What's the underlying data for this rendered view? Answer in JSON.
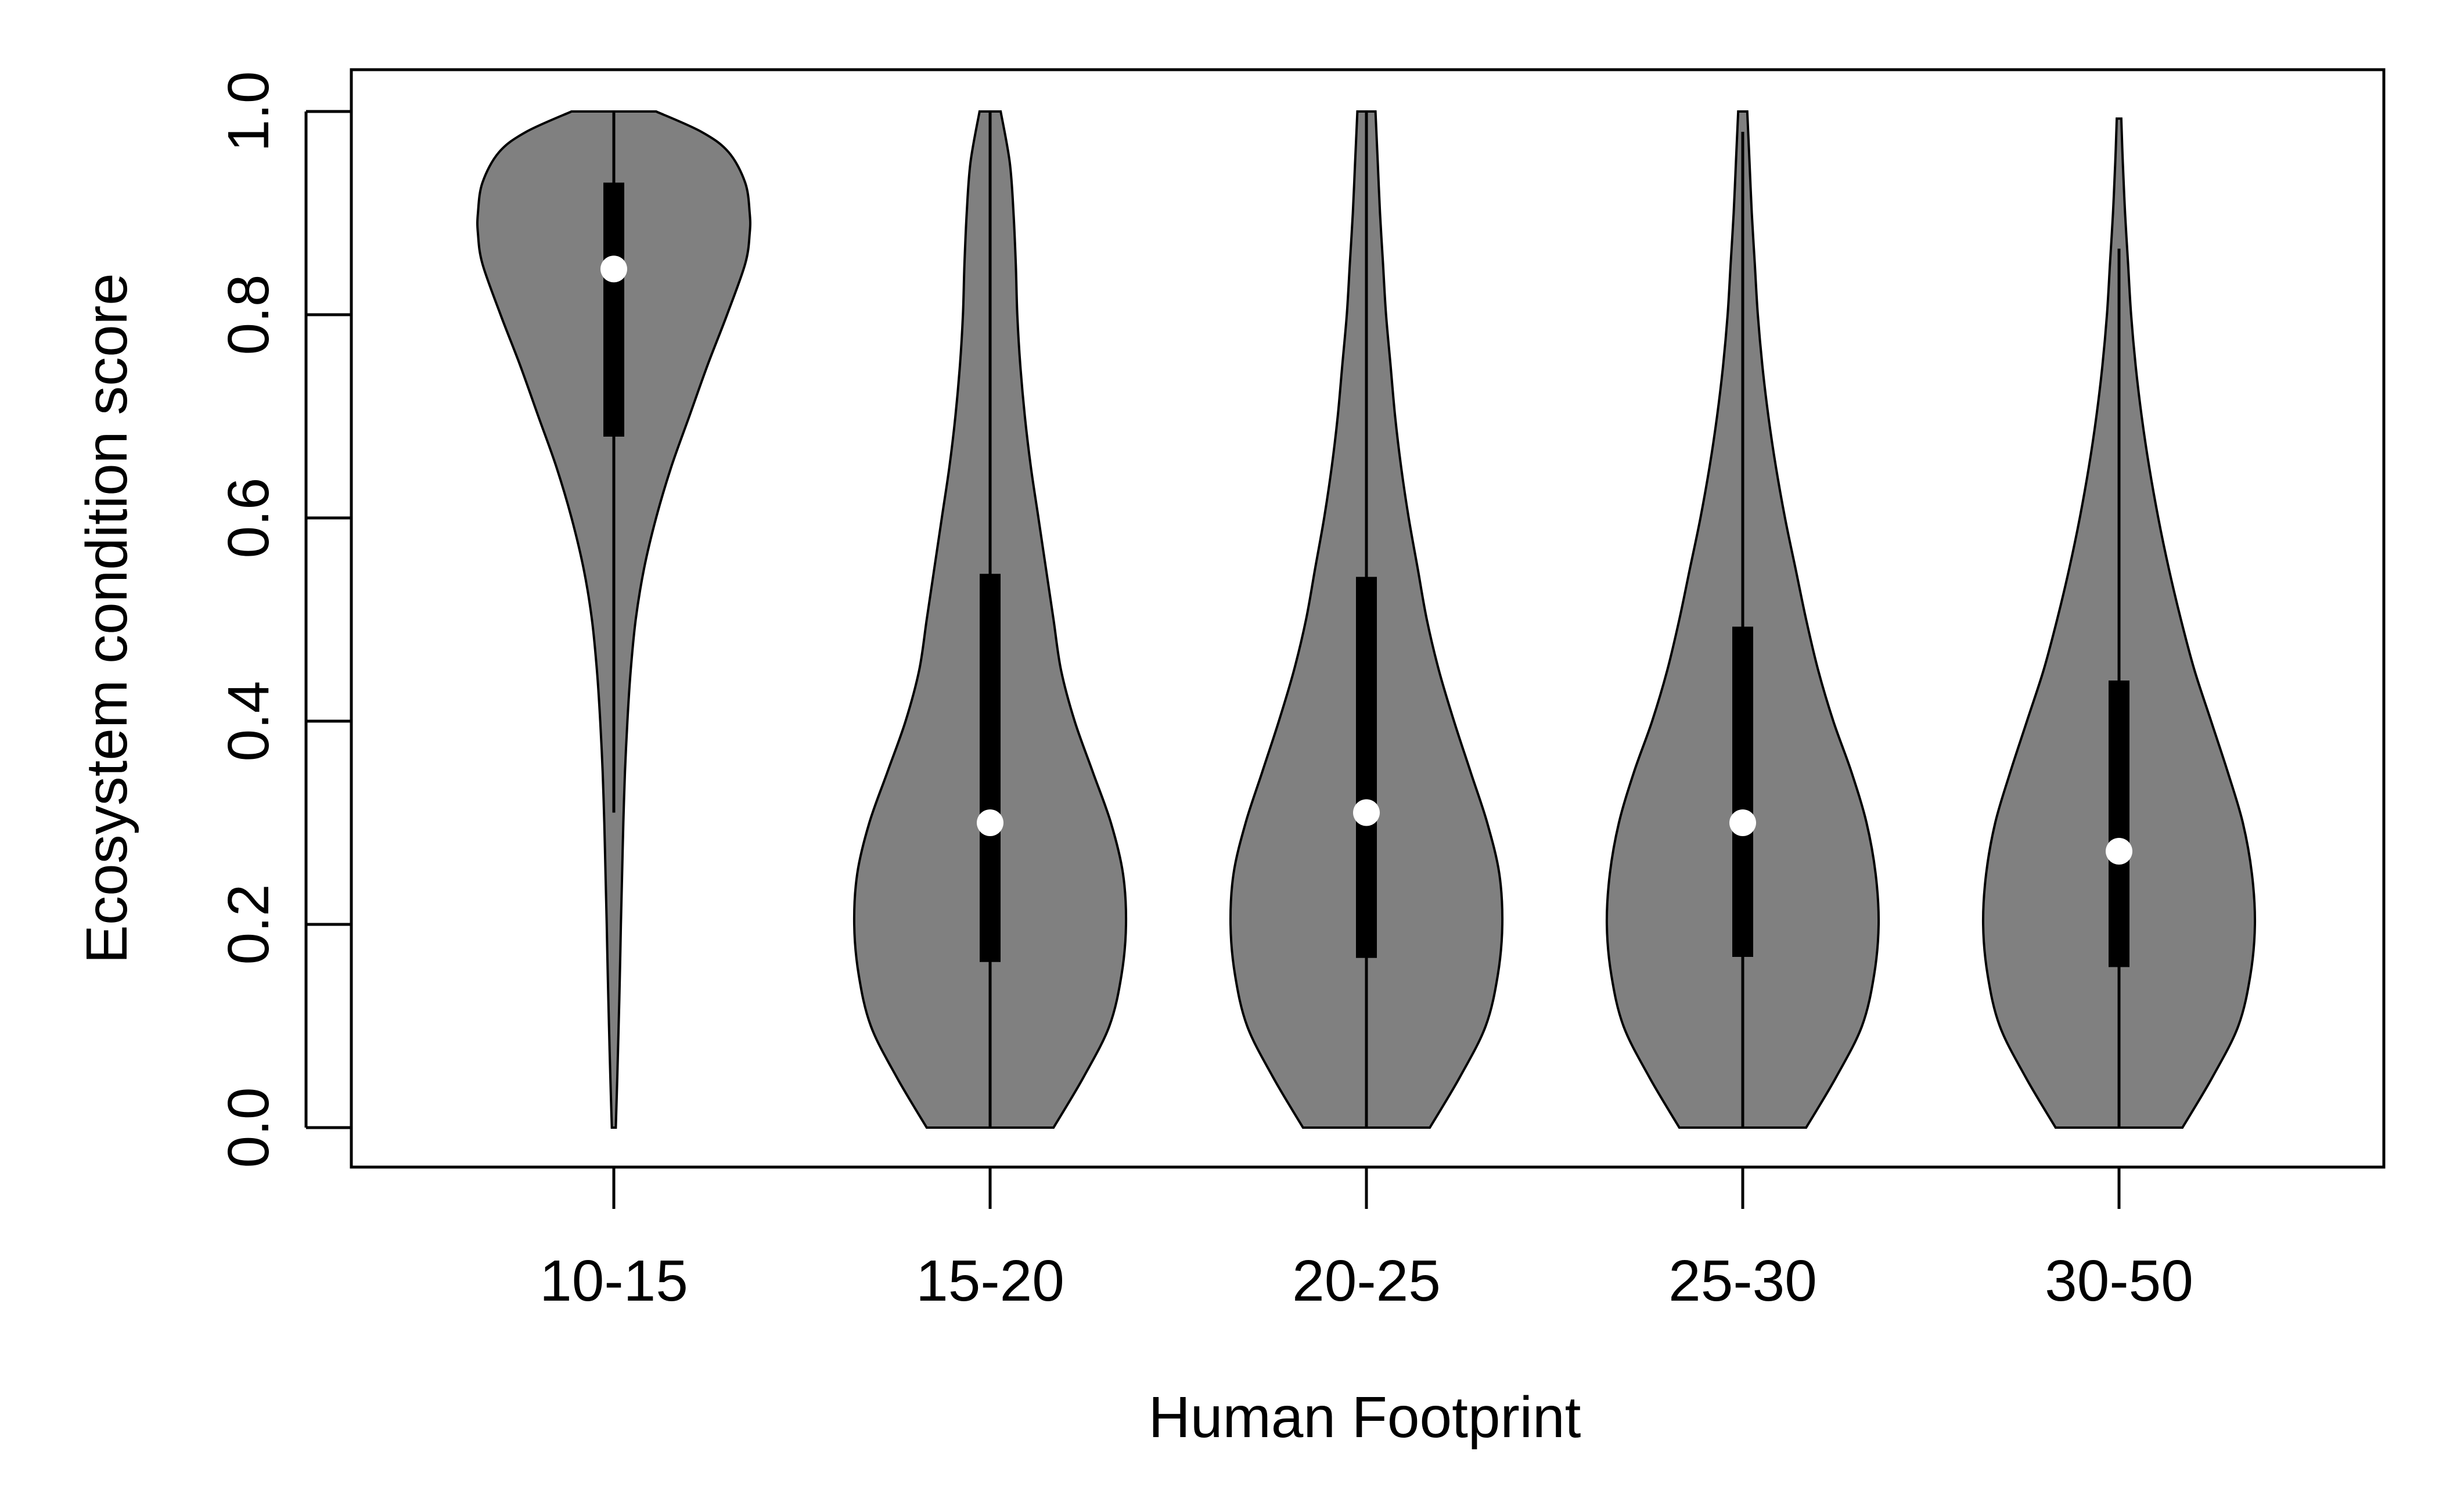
{
  "chart_data": {
    "type": "violin",
    "title": "",
    "xlabel": "Human Footprint",
    "ylabel": "Ecosystem condition score",
    "ylim": [
      0.0,
      1.0
    ],
    "yticks": [
      "0.0",
      "0.2",
      "0.4",
      "0.6",
      "0.8",
      "1.0"
    ],
    "categories": [
      "10-15",
      "15-20",
      "20-25",
      "25-30",
      "30-50"
    ],
    "grid": false,
    "colors": {
      "violin_fill": "#808080",
      "outline": "#000000",
      "box": "#000000",
      "median_dot": "#ffffff"
    },
    "series": [
      {
        "name": "10-15",
        "median": 0.845,
        "q1": 0.68,
        "q3": 0.93,
        "whisker_low": 0.31,
        "whisker_high": 1.0,
        "data_min": 0.0,
        "data_max": 1.0,
        "density": [
          [
            0.0,
            0.013
          ],
          [
            0.05,
            0.023
          ],
          [
            0.1,
            0.032
          ],
          [
            0.15,
            0.04
          ],
          [
            0.2,
            0.047
          ],
          [
            0.25,
            0.055
          ],
          [
            0.3,
            0.063
          ],
          [
            0.35,
            0.074
          ],
          [
            0.4,
            0.09
          ],
          [
            0.45,
            0.112
          ],
          [
            0.5,
            0.145
          ],
          [
            0.55,
            0.2
          ],
          [
            0.6,
            0.28
          ],
          [
            0.65,
            0.38
          ],
          [
            0.7,
            0.5
          ],
          [
            0.75,
            0.62
          ],
          [
            0.8,
            0.75
          ],
          [
            0.85,
            0.87
          ],
          [
            0.88,
            0.9
          ],
          [
            0.9,
            0.9
          ],
          [
            0.93,
            0.87
          ],
          [
            0.96,
            0.76
          ],
          [
            0.98,
            0.58
          ],
          [
            1.0,
            0.28
          ]
        ]
      },
      {
        "name": "15-20",
        "median": 0.3,
        "q1": 0.163,
        "q3": 0.545,
        "whisker_low": 0.0,
        "whisker_high": 1.0,
        "data_min": 0.0,
        "data_max": 1.0,
        "density": [
          [
            0.0,
            0.42
          ],
          [
            0.05,
            0.62
          ],
          [
            0.1,
            0.79
          ],
          [
            0.15,
            0.87
          ],
          [
            0.2,
            0.9
          ],
          [
            0.25,
            0.88
          ],
          [
            0.3,
            0.8
          ],
          [
            0.35,
            0.68
          ],
          [
            0.4,
            0.56
          ],
          [
            0.45,
            0.47
          ],
          [
            0.5,
            0.42
          ],
          [
            0.55,
            0.37
          ],
          [
            0.6,
            0.32
          ],
          [
            0.65,
            0.27
          ],
          [
            0.7,
            0.23
          ],
          [
            0.75,
            0.2
          ],
          [
            0.8,
            0.18
          ],
          [
            0.85,
            0.17
          ],
          [
            0.9,
            0.155
          ],
          [
            0.95,
            0.13
          ],
          [
            1.0,
            0.07
          ]
        ]
      },
      {
        "name": "20-25",
        "median": 0.31,
        "q1": 0.167,
        "q3": 0.542,
        "whisker_low": 0.0,
        "whisker_high": 1.0,
        "data_min": 0.0,
        "data_max": 1.0,
        "density": [
          [
            0.0,
            0.42
          ],
          [
            0.05,
            0.62
          ],
          [
            0.1,
            0.79
          ],
          [
            0.15,
            0.87
          ],
          [
            0.2,
            0.9
          ],
          [
            0.25,
            0.88
          ],
          [
            0.3,
            0.8
          ],
          [
            0.35,
            0.69
          ],
          [
            0.4,
            0.58
          ],
          [
            0.45,
            0.48
          ],
          [
            0.5,
            0.4
          ],
          [
            0.55,
            0.34
          ],
          [
            0.6,
            0.28
          ],
          [
            0.65,
            0.23
          ],
          [
            0.7,
            0.19
          ],
          [
            0.75,
            0.16
          ],
          [
            0.8,
            0.13
          ],
          [
            0.85,
            0.11
          ],
          [
            0.9,
            0.09
          ],
          [
            0.95,
            0.075
          ],
          [
            1.0,
            0.06
          ]
        ]
      },
      {
        "name": "25-30",
        "median": 0.3,
        "q1": 0.168,
        "q3": 0.493,
        "whisker_low": 0.0,
        "whisker_high": 0.98,
        "data_min": 0.0,
        "data_max": 1.0,
        "density": [
          [
            0.0,
            0.42
          ],
          [
            0.05,
            0.62
          ],
          [
            0.1,
            0.79
          ],
          [
            0.15,
            0.87
          ],
          [
            0.2,
            0.9
          ],
          [
            0.25,
            0.88
          ],
          [
            0.3,
            0.82
          ],
          [
            0.35,
            0.72
          ],
          [
            0.4,
            0.6
          ],
          [
            0.45,
            0.5
          ],
          [
            0.5,
            0.42
          ],
          [
            0.55,
            0.35
          ],
          [
            0.6,
            0.28
          ],
          [
            0.65,
            0.22
          ],
          [
            0.7,
            0.17
          ],
          [
            0.75,
            0.13
          ],
          [
            0.8,
            0.1
          ],
          [
            0.85,
            0.08
          ],
          [
            0.9,
            0.06
          ],
          [
            0.95,
            0.045
          ],
          [
            1.0,
            0.03
          ]
        ]
      },
      {
        "name": "30-50",
        "median": 0.272,
        "q1": 0.158,
        "q3": 0.44,
        "whisker_low": 0.0,
        "whisker_high": 0.865,
        "data_min": 0.0,
        "data_max": 0.993,
        "density": [
          [
            0.0,
            0.42
          ],
          [
            0.05,
            0.62
          ],
          [
            0.1,
            0.79
          ],
          [
            0.15,
            0.87
          ],
          [
            0.2,
            0.9
          ],
          [
            0.25,
            0.88
          ],
          [
            0.3,
            0.82
          ],
          [
            0.35,
            0.72
          ],
          [
            0.4,
            0.61
          ],
          [
            0.45,
            0.5
          ],
          [
            0.5,
            0.41
          ],
          [
            0.55,
            0.33
          ],
          [
            0.6,
            0.26
          ],
          [
            0.65,
            0.2
          ],
          [
            0.7,
            0.15
          ],
          [
            0.75,
            0.11
          ],
          [
            0.8,
            0.08
          ],
          [
            0.85,
            0.06
          ],
          [
            0.9,
            0.04
          ],
          [
            0.95,
            0.025
          ],
          [
            0.993,
            0.015
          ]
        ]
      }
    ]
  }
}
